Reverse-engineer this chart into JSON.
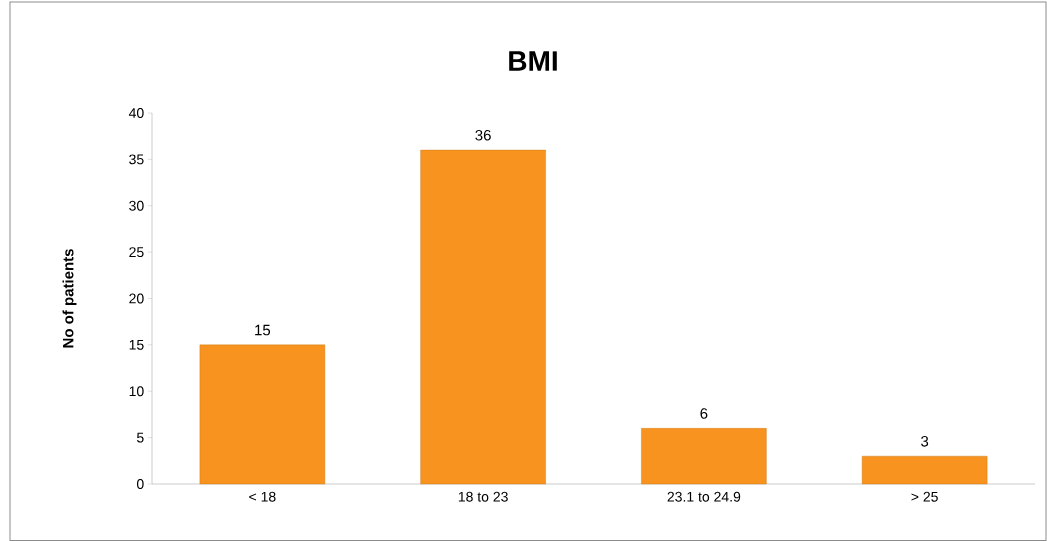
{
  "chart_data": {
    "type": "bar",
    "title": "BMI",
    "ylabel": "No of patients",
    "categories": [
      "< 18",
      "18 to 23",
      "23.1 to 24.9",
      "> 25"
    ],
    "values": [
      15,
      36,
      6,
      3
    ],
    "color": "#f7931e",
    "ylim": [
      0,
      40
    ],
    "yticks": [
      0,
      5,
      10,
      15,
      20,
      25,
      30,
      35,
      40
    ],
    "data_labels": true,
    "grid": false
  }
}
